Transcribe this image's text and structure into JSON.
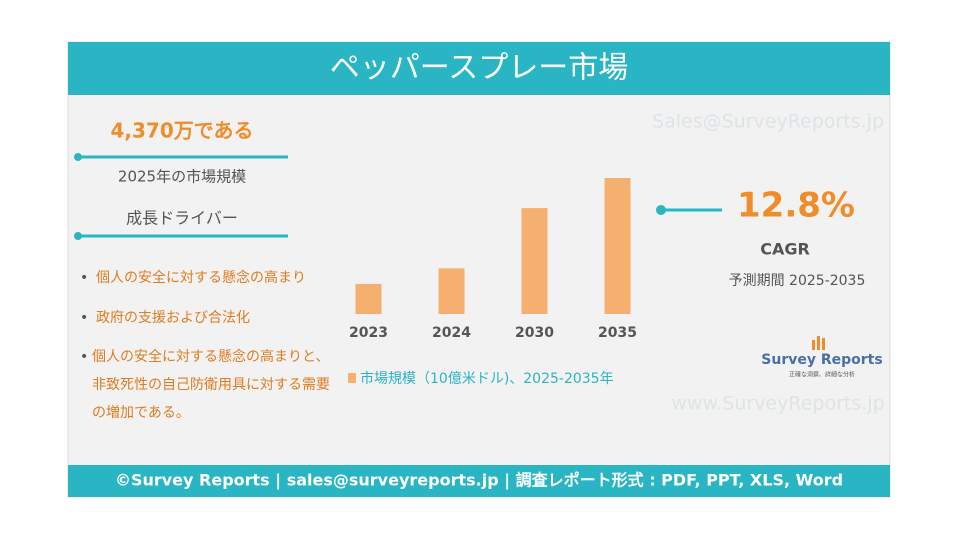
{
  "header": {
    "title": "ペッパースプレー市場"
  },
  "watermark_top": "Sales@SurveyReports.jp",
  "watermark_bottom": "www.SurveyReports.jp",
  "market_size": {
    "value": "4,370万である",
    "label": "2025年の市場規模"
  },
  "drivers": {
    "title": "成長ドライバー",
    "items": [
      "個人の安全に対する懸念の高まり",
      "政府の支援および合法化",
      "個人の安全に対する懸念の高まりと、非致死性の自己防衛用具に対する需要の増加である。"
    ]
  },
  "cagr": {
    "value": "12.8%",
    "label": "CAGR",
    "period": "予測期間 2025-2035"
  },
  "logo": {
    "name": "Survey Reports",
    "tagline": "正確な洞察、詳細な分析"
  },
  "footer": "©Survey Reports | sales@surveyreports.jp | 調査レポート形式 : PDF, PPT, XLS, Word",
  "chart_data": {
    "type": "bar",
    "categories": [
      "2023",
      "2024",
      "2030",
      "2035"
    ],
    "series": [
      {
        "name": "市場規模（10億米ドル)、2025-2035年",
        "color": "#f5b070",
        "values": [
          0.031,
          0.047,
          0.109,
          0.14
        ]
      }
    ]
  }
}
